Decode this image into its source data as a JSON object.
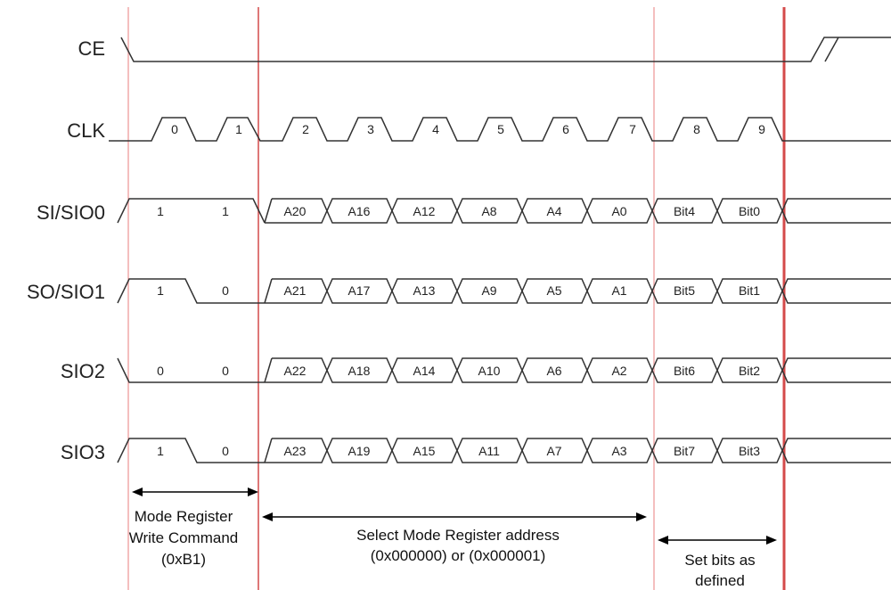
{
  "signals": [
    {
      "name": "CE"
    },
    {
      "name": "CLK",
      "pulses": [
        "0",
        "1",
        "2",
        "3",
        "4",
        "5",
        "6",
        "7",
        "8",
        "9"
      ]
    },
    {
      "name": "SI/SIO0",
      "cmd": [
        "1",
        "1"
      ],
      "cells": [
        "A20",
        "A16",
        "A12",
        "A8",
        "A4",
        "A0",
        "Bit4",
        "Bit0"
      ]
    },
    {
      "name": "SO/SIO1",
      "cmd": [
        "1",
        "0"
      ],
      "cells": [
        "A21",
        "A17",
        "A13",
        "A9",
        "A5",
        "A1",
        "Bit5",
        "Bit1"
      ]
    },
    {
      "name": "SIO2",
      "cmd": [
        "0",
        "0"
      ],
      "cells": [
        "A22",
        "A18",
        "A14",
        "A10",
        "A6",
        "A2",
        "Bit6",
        "Bit2"
      ]
    },
    {
      "name": "SIO3",
      "cmd": [
        "1",
        "0"
      ],
      "cells": [
        "A23",
        "A19",
        "A15",
        "A11",
        "A7",
        "A3",
        "Bit7",
        "Bit3"
      ]
    }
  ],
  "annotations": {
    "mode_cmd": [
      "Mode Register",
      "Write Command",
      "(0xB1)"
    ],
    "address": [
      "Select Mode Register address",
      "(0x000000) or (0x000001)"
    ],
    "set_bits": [
      "Set bits as",
      "defined"
    ]
  },
  "colors": {
    "guide_light": "#f0a9a9",
    "guide_dark": "#d44a4a",
    "wave": "#333333"
  }
}
